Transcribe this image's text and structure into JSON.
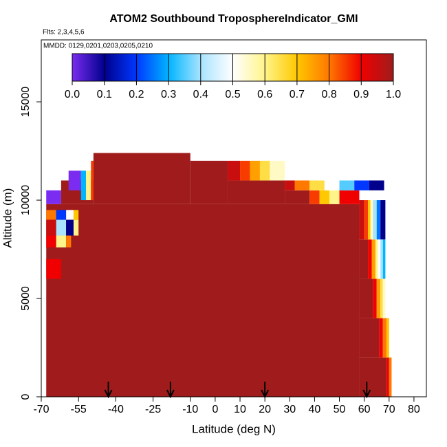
{
  "chart_data": {
    "type": "curtain",
    "title": "ATOM2 Southbound TroposphereIndicator_GMI",
    "flights_note": "Flts: 2,3,4,5,6",
    "dates_note": "MMDD: 0129,0201,0203,0205,0210",
    "x_label": "Latitude (deg N)",
    "y_label": "Altitude (m)",
    "xlim": [
      -70,
      85
    ],
    "ylim": [
      0,
      18150
    ],
    "xticks": [
      -70,
      -55,
      -40,
      -25,
      -10,
      0,
      10,
      20,
      30,
      40,
      50,
      60,
      70,
      80
    ],
    "yticks": [
      0,
      5000,
      10000,
      15000
    ],
    "clim": [
      0,
      1
    ],
    "colormap": [
      "#7a2cf0",
      "#00008c",
      "#0038ff",
      "#00b4ff",
      "#a8e4ff",
      "#ffffff",
      "#fff48a",
      "#ffc800",
      "#ff7800",
      "#f00000",
      "#a01c1c"
    ],
    "cticks": [
      {
        "value": 0,
        "label": "0.0"
      },
      {
        "value": 0.1,
        "label": "0.1"
      },
      {
        "value": 0.2,
        "label": "0.2"
      },
      {
        "value": 0.3,
        "label": "0.3"
      },
      {
        "value": 0.4,
        "label": "0.4"
      },
      {
        "value": 0.5,
        "label": "0.5"
      },
      {
        "value": 0.6,
        "label": "0.6"
      },
      {
        "value": 0.7,
        "label": "0.7"
      },
      {
        "value": 0.8,
        "label": "0.8"
      },
      {
        "value": 0.9,
        "label": "0.9"
      },
      {
        "value": 1,
        "label": "1.0"
      }
    ],
    "cells": [
      [
        -68,
        58,
        0,
        9800,
        1
      ],
      [
        58,
        69,
        0,
        2000,
        1
      ],
      [
        69,
        70,
        0,
        2000,
        0.9
      ],
      [
        70,
        71,
        0,
        2000,
        0.8
      ],
      [
        58,
        66,
        2000,
        4000,
        1
      ],
      [
        66,
        67.5,
        2000,
        4000,
        0.9
      ],
      [
        67.5,
        69,
        2000,
        4000,
        0.8
      ],
      [
        69,
        70,
        2000,
        4000,
        0.7
      ],
      [
        58,
        63.5,
        4000,
        6000,
        1
      ],
      [
        63.5,
        65,
        4000,
        6000,
        0.9
      ],
      [
        65,
        66.5,
        4000,
        6000,
        0.75
      ],
      [
        66.5,
        67.5,
        4000,
        6000,
        0.65
      ],
      [
        67.5,
        68.5,
        4000,
        6000,
        0.55
      ],
      [
        58,
        61.5,
        6000,
        8000,
        1
      ],
      [
        61.5,
        63,
        6000,
        8000,
        0.9
      ],
      [
        63,
        64.5,
        6000,
        8000,
        0.75
      ],
      [
        64.5,
        65.5,
        6000,
        8000,
        0.6
      ],
      [
        65.5,
        66.5,
        6000,
        8000,
        0.5
      ],
      [
        66.5,
        67.5,
        6000,
        8000,
        0.4
      ],
      [
        67.5,
        68.5,
        6000,
        8000,
        0.3
      ],
      [
        58,
        60,
        8000,
        10000,
        0.95
      ],
      [
        60,
        61.5,
        8000,
        10000,
        0.85
      ],
      [
        61.5,
        62.5,
        8000,
        10000,
        0.7
      ],
      [
        62.5,
        63.5,
        8000,
        10000,
        0.55
      ],
      [
        63.5,
        65,
        8000,
        10000,
        0.4
      ],
      [
        65,
        66.5,
        8000,
        10000,
        0.25
      ],
      [
        66.5,
        68.5,
        8000,
        10000,
        0.1
      ],
      [
        -49,
        -10,
        9800,
        12400,
        1
      ],
      [
        -10,
        5,
        9800,
        12000,
        1
      ],
      [
        5,
        28,
        9800,
        11000,
        1
      ],
      [
        5,
        10,
        11000,
        12000,
        0.95
      ],
      [
        10,
        14,
        11000,
        12000,
        0.85
      ],
      [
        14,
        18,
        11000,
        12000,
        0.75
      ],
      [
        18,
        22,
        11000,
        12000,
        0.65
      ],
      [
        22,
        28,
        11000,
        12000,
        0.55
      ],
      [
        28,
        38,
        9800,
        10500,
        1
      ],
      [
        38,
        42,
        9800,
        10500,
        0.85
      ],
      [
        42,
        46,
        9800,
        10500,
        0.7
      ],
      [
        46,
        50,
        9800,
        10500,
        0.6
      ],
      [
        50,
        58,
        9800,
        10500,
        0.9
      ],
      [
        28,
        32,
        10500,
        11000,
        0.95
      ],
      [
        32,
        38,
        10500,
        11000,
        0.8
      ],
      [
        38,
        44,
        10500,
        11000,
        0.65
      ],
      [
        44,
        50,
        10500,
        11000,
        0.5
      ],
      [
        50,
        56,
        10500,
        11000,
        0.35
      ],
      [
        56,
        62,
        10500,
        11000,
        0.2
      ],
      [
        62,
        68,
        10500,
        11000,
        0.1
      ],
      [
        -68,
        -62,
        9800,
        10500,
        0
      ],
      [
        -62,
        -49,
        9800,
        11000,
        1
      ],
      [
        -59,
        -54,
        10500,
        11500,
        0
      ],
      [
        -54,
        -52,
        10000,
        11500,
        0.3
      ],
      [
        -52,
        -50,
        10000,
        11500,
        0.6
      ],
      [
        -50,
        -49,
        10000,
        12000,
        0.85
      ],
      [
        -68,
        -64,
        9000,
        9500,
        0.8
      ],
      [
        -64,
        -60,
        9000,
        9500,
        0.2
      ],
      [
        -60,
        -57,
        9000,
        9500,
        0.5
      ],
      [
        -57,
        -55,
        9000,
        9500,
        0.7
      ],
      [
        -68,
        -64,
        8200,
        9000,
        0.95
      ],
      [
        -64,
        -60,
        8200,
        9000,
        0.4
      ],
      [
        -60,
        -57,
        8200,
        9000,
        0.1
      ],
      [
        -57,
        -55,
        8200,
        9000,
        0.6
      ],
      [
        -68,
        -64,
        7600,
        8200,
        0.9
      ],
      [
        -64,
        -60,
        7600,
        8200,
        0.6
      ],
      [
        -60,
        -58,
        7600,
        8200,
        0.8
      ],
      [
        -68,
        -62,
        6000,
        7000,
        0.9
      ]
    ],
    "arrows": [
      -43,
      -18,
      20,
      61
    ]
  }
}
